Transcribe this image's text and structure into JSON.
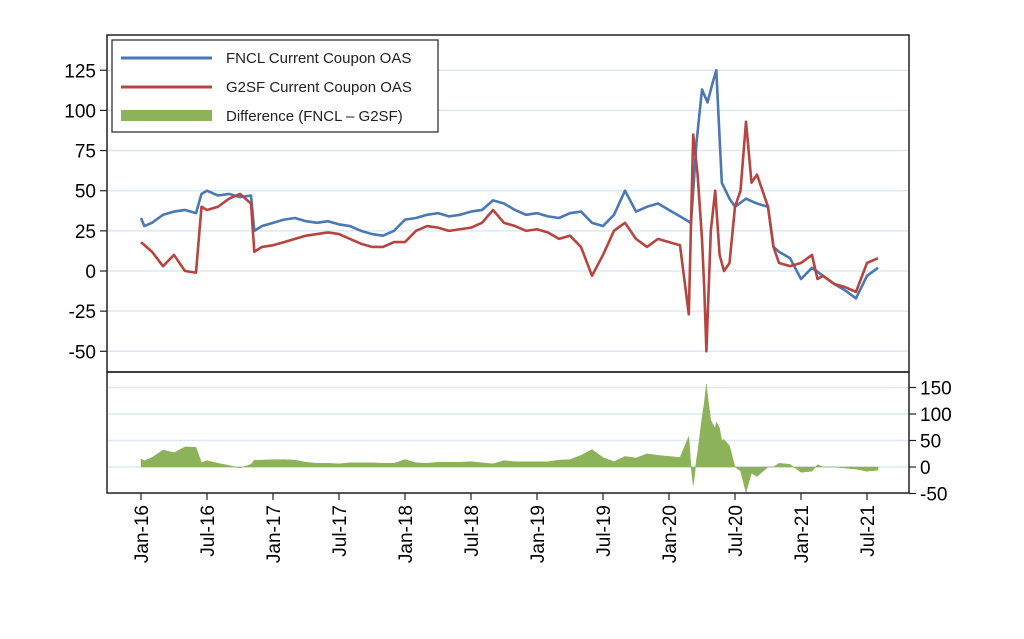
{
  "chart_data": {
    "type": "line",
    "title": "",
    "xlabel": "",
    "ylabel": "",
    "x_unit": "months since Jan-16",
    "x_ticks": [
      "Jan-16",
      "Jul-16",
      "Jan-17",
      "Jul-17",
      "Jan-18",
      "Jul-18",
      "Jan-19",
      "Jul-19",
      "Jan-20",
      "Jul-20",
      "Jan-21",
      "Jul-21"
    ],
    "colors": {
      "fncl": "#4a78b4",
      "g2sf": "#b84440",
      "diff": "#8db35a",
      "grid": "#dbe9f6"
    },
    "top_panel": {
      "ylim": [
        -60,
        140
      ],
      "y_ticks": [
        125,
        100,
        75,
        50,
        25,
        0,
        -25,
        -50
      ],
      "legend": [
        "FNCL Current Coupon OAS",
        "G2SF Current Coupon OAS",
        "Difference (FNCL – G2SF)"
      ],
      "legend_position": "top-left",
      "series": [
        {
          "name": "FNCL Current Coupon OAS",
          "points": [
            [
              0,
              33
            ],
            [
              0.3,
              28
            ],
            [
              1,
              30
            ],
            [
              2,
              35
            ],
            [
              3,
              37
            ],
            [
              4,
              38
            ],
            [
              5,
              36
            ],
            [
              5.5,
              48
            ],
            [
              6,
              50
            ],
            [
              7,
              47
            ],
            [
              8,
              48
            ],
            [
              9,
              46
            ],
            [
              10,
              47
            ],
            [
              10.3,
              25
            ],
            [
              11,
              28
            ],
            [
              12,
              30
            ],
            [
              13,
              32
            ],
            [
              14,
              33
            ],
            [
              15,
              31
            ],
            [
              16,
              30
            ],
            [
              17,
              31
            ],
            [
              18,
              29
            ],
            [
              19,
              28
            ],
            [
              20,
              25
            ],
            [
              21,
              23
            ],
            [
              22,
              22
            ],
            [
              23,
              25
            ],
            [
              24,
              32
            ],
            [
              25,
              33
            ],
            [
              26,
              35
            ],
            [
              27,
              36
            ],
            [
              28,
              34
            ],
            [
              29,
              35
            ],
            [
              30,
              37
            ],
            [
              31,
              38
            ],
            [
              32,
              44
            ],
            [
              33,
              42
            ],
            [
              34,
              38
            ],
            [
              35,
              35
            ],
            [
              36,
              36
            ],
            [
              37,
              34
            ],
            [
              38,
              33
            ],
            [
              39,
              36
            ],
            [
              40,
              37
            ],
            [
              41,
              30
            ],
            [
              42,
              28
            ],
            [
              43,
              35
            ],
            [
              44,
              50
            ],
            [
              45,
              37
            ],
            [
              46,
              40
            ],
            [
              47,
              42
            ],
            [
              48,
              38
            ],
            [
              49,
              34
            ],
            [
              50,
              30
            ],
            [
              50.5,
              80
            ],
            [
              51,
              113
            ],
            [
              51.5,
              105
            ],
            [
              52,
              118
            ],
            [
              52.3,
              125
            ],
            [
              52.8,
              55
            ],
            [
              53.5,
              45
            ],
            [
              54,
              40
            ],
            [
              55,
              45
            ],
            [
              56,
              42
            ],
            [
              57,
              40
            ],
            [
              57.5,
              15
            ],
            [
              58,
              12
            ],
            [
              59,
              8
            ],
            [
              60,
              -5
            ],
            [
              61,
              2
            ],
            [
              62,
              -3
            ],
            [
              63,
              -8
            ],
            [
              64,
              -12
            ],
            [
              65,
              -17
            ],
            [
              66,
              -3
            ],
            [
              67,
              2
            ]
          ]
        },
        {
          "name": "G2SF Current Coupon OAS",
          "points": [
            [
              0,
              18
            ],
            [
              1,
              12
            ],
            [
              2,
              3
            ],
            [
              3,
              10
            ],
            [
              4,
              0
            ],
            [
              5,
              -1
            ],
            [
              5.5,
              40
            ],
            [
              6,
              38
            ],
            [
              7,
              40
            ],
            [
              8,
              45
            ],
            [
              9,
              48
            ],
            [
              10,
              42
            ],
            [
              10.3,
              12
            ],
            [
              11,
              15
            ],
            [
              12,
              16
            ],
            [
              13,
              18
            ],
            [
              14,
              20
            ],
            [
              15,
              22
            ],
            [
              16,
              23
            ],
            [
              17,
              24
            ],
            [
              18,
              23
            ],
            [
              19,
              20
            ],
            [
              20,
              17
            ],
            [
              21,
              15
            ],
            [
              22,
              15
            ],
            [
              23,
              18
            ],
            [
              24,
              18
            ],
            [
              25,
              25
            ],
            [
              26,
              28
            ],
            [
              27,
              27
            ],
            [
              28,
              25
            ],
            [
              29,
              26
            ],
            [
              30,
              27
            ],
            [
              31,
              30
            ],
            [
              32,
              38
            ],
            [
              33,
              30
            ],
            [
              34,
              28
            ],
            [
              35,
              25
            ],
            [
              36,
              26
            ],
            [
              37,
              24
            ],
            [
              38,
              20
            ],
            [
              39,
              22
            ],
            [
              40,
              15
            ],
            [
              41,
              -3
            ],
            [
              42,
              10
            ],
            [
              43,
              25
            ],
            [
              44,
              30
            ],
            [
              45,
              20
            ],
            [
              46,
              15
            ],
            [
              47,
              20
            ],
            [
              48,
              18
            ],
            [
              49,
              16
            ],
            [
              49.8,
              -27
            ],
            [
              50.2,
              85
            ],
            [
              50.6,
              60
            ],
            [
              51,
              20
            ],
            [
              51.2,
              -10
            ],
            [
              51.4,
              -50
            ],
            [
              51.8,
              25
            ],
            [
              52.2,
              50
            ],
            [
              52.6,
              10
            ],
            [
              53,
              0
            ],
            [
              53.5,
              5
            ],
            [
              54,
              40
            ],
            [
              54.5,
              50
            ],
            [
              55,
              93
            ],
            [
              55.5,
              55
            ],
            [
              56,
              60
            ],
            [
              56.5,
              50
            ],
            [
              57,
              40
            ],
            [
              57.5,
              15
            ],
            [
              58,
              5
            ],
            [
              59,
              3
            ],
            [
              60,
              5
            ],
            [
              61,
              10
            ],
            [
              61.5,
              -5
            ],
            [
              62,
              -3
            ],
            [
              63,
              -8
            ],
            [
              64,
              -10
            ],
            [
              65,
              -13
            ],
            [
              66,
              5
            ],
            [
              67,
              8
            ]
          ]
        }
      ]
    },
    "bottom_panel": {
      "type": "area",
      "series_name": "Difference (FNCL – G2SF)",
      "ylim": [
        -50,
        160
      ],
      "y_ticks": [
        150,
        100,
        50,
        0,
        -50
      ]
    }
  }
}
